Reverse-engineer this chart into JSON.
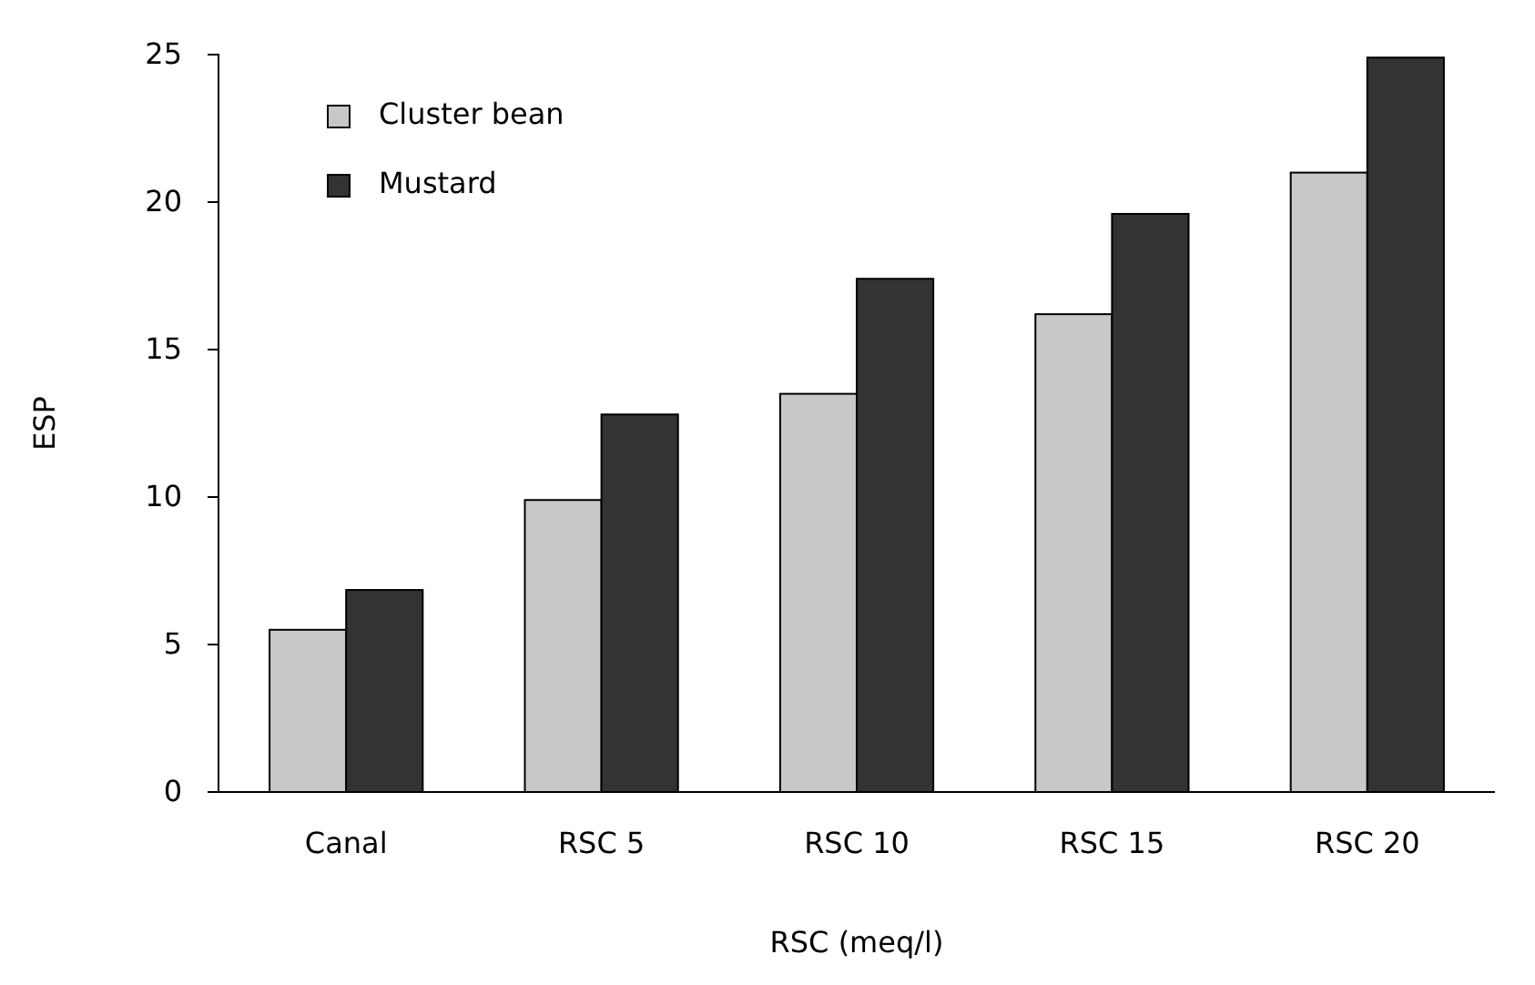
{
  "chart_data": {
    "type": "bar",
    "xlabel": "RSC (meq/l)",
    "ylabel": "ESP",
    "categories": [
      "Canal",
      "RSC 5",
      "RSC 10",
      "RSC 15",
      "RSC 20"
    ],
    "series": [
      {
        "name": "Cluster bean",
        "color": "#c8c8c8",
        "values": [
          5.5,
          9.9,
          13.5,
          16.2,
          21.0
        ]
      },
      {
        "name": "Mustard",
        "color": "#333333",
        "values": [
          6.85,
          12.8,
          17.4,
          19.6,
          24.9
        ]
      }
    ],
    "ylim": [
      0,
      25
    ],
    "yticks": [
      0,
      5,
      10,
      15,
      20,
      25
    ],
    "legend": "top left",
    "grid": false
  }
}
